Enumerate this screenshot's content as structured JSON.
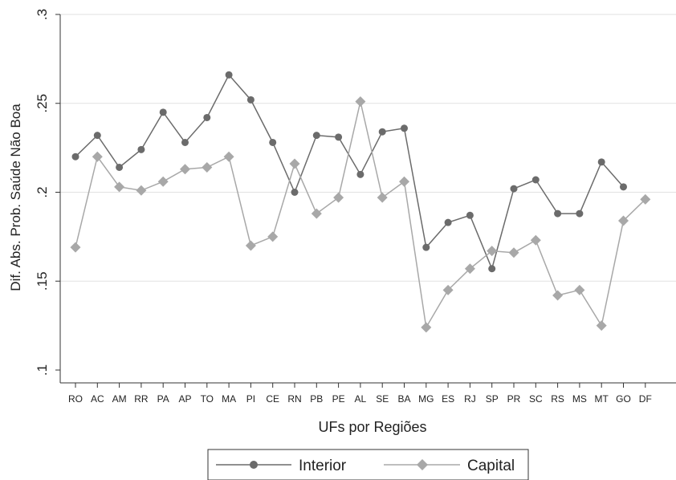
{
  "chart_data": {
    "type": "line",
    "xlabel": "UFs por Regiões",
    "ylabel": "Dif. Abs. Prob. Saúde Não Boa",
    "ylim": [
      0.1,
      0.3
    ],
    "yticks": [
      0.1,
      0.15,
      0.2,
      0.25,
      0.3
    ],
    "ytick_labels": [
      ".1",
      ".15",
      ".2",
      ".25",
      ".3"
    ],
    "grid": true,
    "legend_position": "bottom",
    "categories": [
      "RO",
      "AC",
      "AM",
      "RR",
      "PA",
      "AP",
      "TO",
      "MA",
      "PI",
      "CE",
      "RN",
      "PB",
      "PE",
      "AL",
      "SE",
      "BA",
      "MG",
      "ES",
      "RJ",
      "SP",
      "PR",
      "SC",
      "RS",
      "MS",
      "MT",
      "GO",
      "DF"
    ],
    "series": [
      {
        "name": "Interior",
        "color": "#6b6b6b",
        "marker": "circle",
        "values": [
          0.22,
          0.232,
          0.214,
          0.224,
          0.245,
          0.228,
          0.242,
          0.266,
          0.252,
          0.228,
          0.2,
          0.232,
          0.231,
          0.21,
          0.234,
          0.236,
          0.169,
          0.183,
          0.187,
          0.157,
          0.202,
          0.207,
          0.188,
          0.188,
          0.217,
          0.203,
          null
        ]
      },
      {
        "name": "Capital",
        "color": "#a8a8a8",
        "marker": "diamond",
        "values": [
          0.169,
          0.22,
          0.203,
          0.201,
          0.206,
          0.213,
          0.214,
          0.22,
          0.17,
          0.175,
          0.216,
          0.188,
          0.197,
          0.251,
          0.197,
          0.206,
          0.124,
          0.145,
          0.157,
          0.167,
          0.166,
          0.173,
          0.142,
          0.145,
          0.125,
          0.184,
          0.196
        ]
      }
    ]
  }
}
